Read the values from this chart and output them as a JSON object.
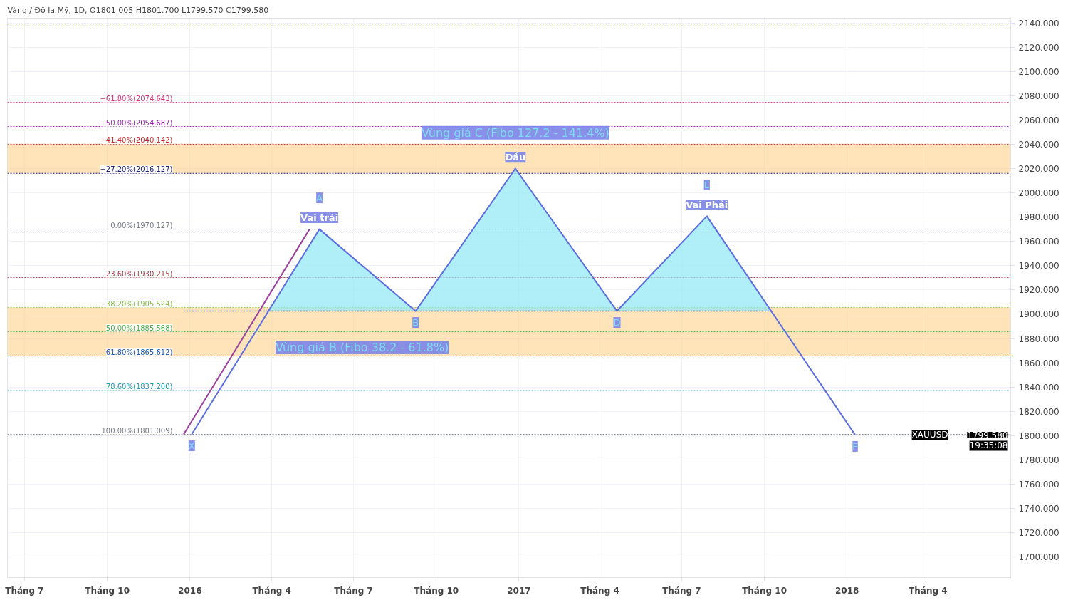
{
  "chart_data": {
    "type": "line",
    "title": "Vàng / Đô la Mỹ, 1D, O1801.005 H1801.700 L1799.570 C1799.580",
    "xlim": [
      "2015-06-12",
      "2018-07-02"
    ],
    "xticks": [
      {
        "value": "2015-07-01",
        "label": "Tháng 7"
      },
      {
        "value": "2015-10-01",
        "label": "Tháng 10"
      },
      {
        "value": "2016-01-01",
        "label": "2016"
      },
      {
        "value": "2016-04-01",
        "label": "Tháng 4"
      },
      {
        "value": "2016-07-01",
        "label": "Tháng 7"
      },
      {
        "value": "2016-10-01",
        "label": "Tháng 10"
      },
      {
        "value": "2017-01-01",
        "label": "2017"
      },
      {
        "value": "2017-04-01",
        "label": "Tháng 4"
      },
      {
        "value": "2017-07-01",
        "label": "Tháng 7"
      },
      {
        "value": "2017-10-01",
        "label": "Tháng 10"
      },
      {
        "value": "2018-01-01",
        "label": "2018"
      },
      {
        "value": "2018-04-01",
        "label": "Tháng 4"
      }
    ],
    "ylim": [
      1683,
      2144
    ],
    "yticks": [
      {
        "value": 1700,
        "label": "1700.000"
      },
      {
        "value": 1720,
        "label": "1720.000"
      },
      {
        "value": 1740,
        "label": "1740.000"
      },
      {
        "value": 1760,
        "label": "1760.000"
      },
      {
        "value": 1780,
        "label": "1780.000"
      },
      {
        "value": 1800,
        "label": "1800.000"
      },
      {
        "value": 1820,
        "label": "1820.000"
      },
      {
        "value": 1840,
        "label": "1840.000"
      },
      {
        "value": 1860,
        "label": "1860.000"
      },
      {
        "value": 1880,
        "label": "1880.000"
      },
      {
        "value": 1900,
        "label": "1900.000"
      },
      {
        "value": 1920,
        "label": "1920.000"
      },
      {
        "value": 1940,
        "label": "1940.000"
      },
      {
        "value": 1960,
        "label": "1960.000"
      },
      {
        "value": 1980,
        "label": "1980.000"
      },
      {
        "value": 2000,
        "label": "2000.000"
      },
      {
        "value": 2020,
        "label": "2020.000"
      },
      {
        "value": 2040,
        "label": "2040.000"
      },
      {
        "value": 2060,
        "label": "2060.000"
      },
      {
        "value": 2080,
        "label": "2080.000"
      },
      {
        "value": 2100,
        "label": "2100.000"
      },
      {
        "value": 2120,
        "label": "2120.000"
      },
      {
        "value": 2140,
        "label": "2140.000"
      }
    ],
    "grid": true,
    "series": [
      {
        "type": "area",
        "color": "#8ee8f5",
        "x": [
          "2016-03-29",
          "2016-05-24",
          "2016-09-08",
          "2016-12-28",
          "2017-04-20",
          "2017-07-29",
          "2017-10-09"
        ],
        "values": [
          1902.6,
          1970.1,
          1902.6,
          2020,
          1902.6,
          1980.8,
          1902.6
        ]
      },
      {
        "color": "#9c3fa0",
        "x": [
          "2015-12-25",
          "2016-05-13"
        ],
        "values": [
          1801,
          1970.1
        ]
      },
      {
        "color": "#5b6ee1",
        "line_style": "dotted",
        "x": [
          "2015-12-25",
          "2017-10-09"
        ],
        "values": [
          1902.6,
          1902.6
        ]
      },
      {
        "color": "#5b6ee1",
        "x": [
          "2016-01-03",
          "2016-05-24",
          "2016-09-08",
          "2016-12-28",
          "2017-04-20",
          "2017-07-29",
          "2018-01-10"
        ],
        "values": [
          1801,
          1970.1,
          1902.6,
          2020,
          1902.6,
          1980.8,
          1800.5
        ]
      }
    ],
    "bands": [
      {
        "axis": "y",
        "from": 1865.612,
        "to": 1905.524,
        "color": "#ffcc80",
        "label": "Vùng giá B (Fibo 38.2 - 61.8%)"
      },
      {
        "axis": "y",
        "from": 2016.127,
        "to": 2040.142,
        "color": "#ffcc80",
        "label": "Vùng giá C (Fibo 127.2 - 141.4%)"
      }
    ],
    "ref_lines": [
      {
        "axis": "y",
        "value": 2139.2,
        "label": null,
        "color": "#b5c400",
        "line_style": "dotted"
      },
      {
        "axis": "y",
        "value": 2074.643,
        "label": "−61.80%(2074.643)",
        "color": "#d6337f",
        "line_style": "dotted"
      },
      {
        "axis": "y",
        "value": 2054.687,
        "label": "−50.00%(2054.687)",
        "color": "#9c27b0",
        "line_style": "dotted"
      },
      {
        "axis": "y",
        "value": 2040.142,
        "label": "−41.40%(2040.142)",
        "color": "#c62828",
        "line_style": "dotted"
      },
      {
        "axis": "y",
        "value": 2016.127,
        "label": "−27.20%(2016.127)",
        "color": "#1a237e",
        "line_style": "dotted"
      },
      {
        "axis": "y",
        "value": 1970.127,
        "label": "0.00%(1970.127)",
        "color": "#787b86",
        "line_style": "dotted"
      },
      {
        "axis": "y",
        "value": 1930.215,
        "label": "23.60%(1930.215)",
        "color": "#b2394a",
        "line_style": "dotted"
      },
      {
        "axis": "y",
        "value": 1905.524,
        "label": "38.20%(1905.524)",
        "color": "#8bc34a",
        "line_style": "dotted"
      },
      {
        "axis": "y",
        "value": 1885.568,
        "label": "50.00%(1885.568)",
        "color": "#4caf50",
        "line_style": "dotted"
      },
      {
        "axis": "y",
        "value": 1865.612,
        "label": "61.80%(1865.612)",
        "color": "#1e5bb8",
        "line_style": "dotted"
      },
      {
        "axis": "y",
        "value": 1837.2,
        "label": "78.60%(1837.200)",
        "color": "#1f9bb5",
        "line_style": "dotted"
      },
      {
        "axis": "y",
        "value": 1801.009,
        "label": "100.00%(1801.009)",
        "color": "#787b86",
        "line_style": "dotted"
      }
    ],
    "annotations": [
      {
        "text": "X",
        "x": "2016-01-03",
        "y": 1801
      },
      {
        "text": "A",
        "x": "2016-05-24",
        "y": 1970.1
      },
      {
        "text": "Vai trái",
        "x": "2016-05-24",
        "y": 1970.1
      },
      {
        "text": "B",
        "x": "2016-09-08",
        "y": 1902.6
      },
      {
        "text": "Đầu",
        "x": "2016-12-28",
        "y": 2020
      },
      {
        "text": "D",
        "x": "2017-04-20",
        "y": 1902.6
      },
      {
        "text": "E",
        "x": "2017-07-29",
        "y": 1980.8
      },
      {
        "text": "Vai Phải",
        "x": "2017-07-29",
        "y": 1980.8
      },
      {
        "text": "F",
        "x": "2018-01-10",
        "y": 1800.5
      },
      "XAUUSD",
      "1799.580",
      "19:35:08"
    ]
  }
}
